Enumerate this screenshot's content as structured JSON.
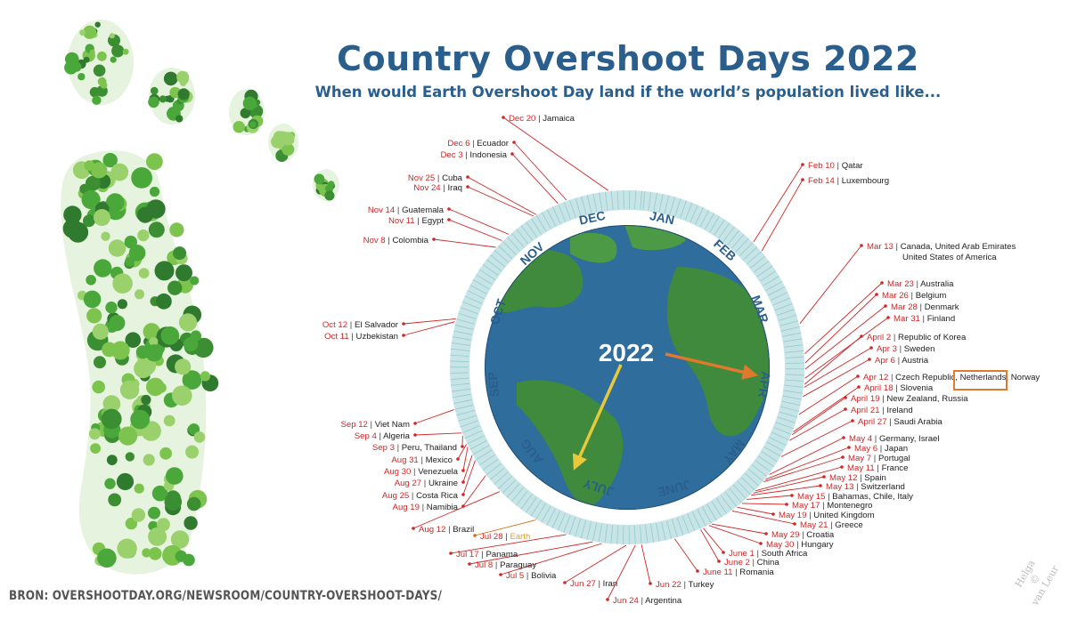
{
  "title": "Country Overshoot Days 2022",
  "subtitle": "When would Earth Overshoot Day land if the world’s population lived like...",
  "year_label": "2022",
  "source": "BRON: OVERSHOOTDAY.ORG/NEWSROOM/COUNTRY-OVERSHOOT-DAYS/",
  "credit": {
    "name": "Helga",
    "symbol": "©",
    "surname": "van Leur"
  },
  "months": [
    "DEC",
    "JAN",
    "FEB",
    "MAR",
    "APR",
    "MAY",
    "JUNE",
    "JULY",
    "AUG",
    "SEP",
    "OCT",
    "NOV"
  ],
  "colors": {
    "title": "#2a5e8c",
    "date": "#d02626",
    "ocean": "#2f6d9c",
    "land": "#3f8a3c",
    "ring": "#a8d4d8",
    "arrow_orange": "#e0792c",
    "arrow_yellow": "#e8c93c",
    "highlight_box": "#e07a2c",
    "footprint": "#5cb43c"
  },
  "icons": [
    "footprint-icon",
    "globe-icon"
  ],
  "entries": [
    {
      "date": "Feb 10",
      "label": "Qatar"
    },
    {
      "date": "Feb 14",
      "label": "Luxembourg"
    },
    {
      "date": "Mar 13",
      "label": "Canada, United Arab Emirates",
      "label2": "United States of America"
    },
    {
      "date": "Mar 23",
      "label": "Australia"
    },
    {
      "date": "Mar 26",
      "label": "Belgium"
    },
    {
      "date": "Mar 28",
      "label": "Denmark"
    },
    {
      "date": "Mar 31",
      "label": "Finland"
    },
    {
      "date": "April 2",
      "label": "Republic of Korea"
    },
    {
      "date": "Apr 3",
      "label": "Sweden"
    },
    {
      "date": "Apr 6",
      "label": "Austria"
    },
    {
      "date": "Apr 12",
      "label": "Czech Republic,",
      "label_mid": "Netherlands,",
      "label_end": "Norway",
      "highlight": "Netherlands,"
    },
    {
      "date": "April 18",
      "label": "Slovenia"
    },
    {
      "date": "April 19",
      "label": "New Zealand, Russia"
    },
    {
      "date": "April 21",
      "label": "Ireland"
    },
    {
      "date": "April 27",
      "label": "Saudi Arabia"
    },
    {
      "date": "May 4",
      "label": "Germany, Israel"
    },
    {
      "date": "May 6",
      "label": "Japan"
    },
    {
      "date": "May 7",
      "label": "Portugal"
    },
    {
      "date": "May 11",
      "label": "France"
    },
    {
      "date": "May 12",
      "label": "Spain"
    },
    {
      "date": "May 13",
      "label": "Switzerland"
    },
    {
      "date": "May 15",
      "label": "Bahamas, Chile, Italy"
    },
    {
      "date": "May 17",
      "label": "Montenegro"
    },
    {
      "date": "May 19",
      "label": "United Kingdom"
    },
    {
      "date": "May 21",
      "label": "Greece"
    },
    {
      "date": "May 29",
      "label": "Croatia"
    },
    {
      "date": "May 30",
      "label": "Hungary"
    },
    {
      "date": "June 1",
      "label": "South Africa"
    },
    {
      "date": "June 2",
      "label": "China"
    },
    {
      "date": "June 11",
      "label": "Romania"
    },
    {
      "date": "Jun 22",
      "label": "Turkey"
    },
    {
      "date": "Jun 24",
      "label": "Argentina"
    },
    {
      "date": "Jun 27",
      "label": "Iran"
    },
    {
      "date": "Jul 5",
      "label": "Bolivia"
    },
    {
      "date": "Jul 8",
      "label": "Paraguay"
    },
    {
      "date": "Jul 17",
      "label": "Panama"
    },
    {
      "date": "Jul 28",
      "label": "Earth",
      "earth": true
    },
    {
      "date": "Aug 12",
      "label": "Brazil"
    },
    {
      "date": "Aug 19",
      "label": "Namibia"
    },
    {
      "date": "Aug 25",
      "label": "Costa Rica"
    },
    {
      "date": "Aug 27",
      "label": "Ukraine"
    },
    {
      "date": "Aug 30",
      "label": "Venezuela"
    },
    {
      "date": "Aug 31",
      "label": "Mexico"
    },
    {
      "date": "Sep 3",
      "label": "Peru, Thailand"
    },
    {
      "date": "Sep 4",
      "label": "Algeria"
    },
    {
      "date": "Sep 12",
      "label": "Viet Nam"
    },
    {
      "date": "Oct 11",
      "label": "Uzbekistan"
    },
    {
      "date": "Oct 12",
      "label": "El Salvador"
    },
    {
      "date": "Nov 8",
      "label": "Colombia"
    },
    {
      "date": "Nov 11",
      "label": "Egypt"
    },
    {
      "date": "Nov 14",
      "label": "Guatemala"
    },
    {
      "date": "Nov 24",
      "label": "Iraq"
    },
    {
      "date": "Nov 25",
      "label": "Cuba"
    },
    {
      "date": "Dec 3",
      "label": "Indonesia"
    },
    {
      "date": "Dec 6",
      "label": "Ecuador"
    },
    {
      "date": "Dec 20",
      "label": "Jamaica"
    }
  ]
}
